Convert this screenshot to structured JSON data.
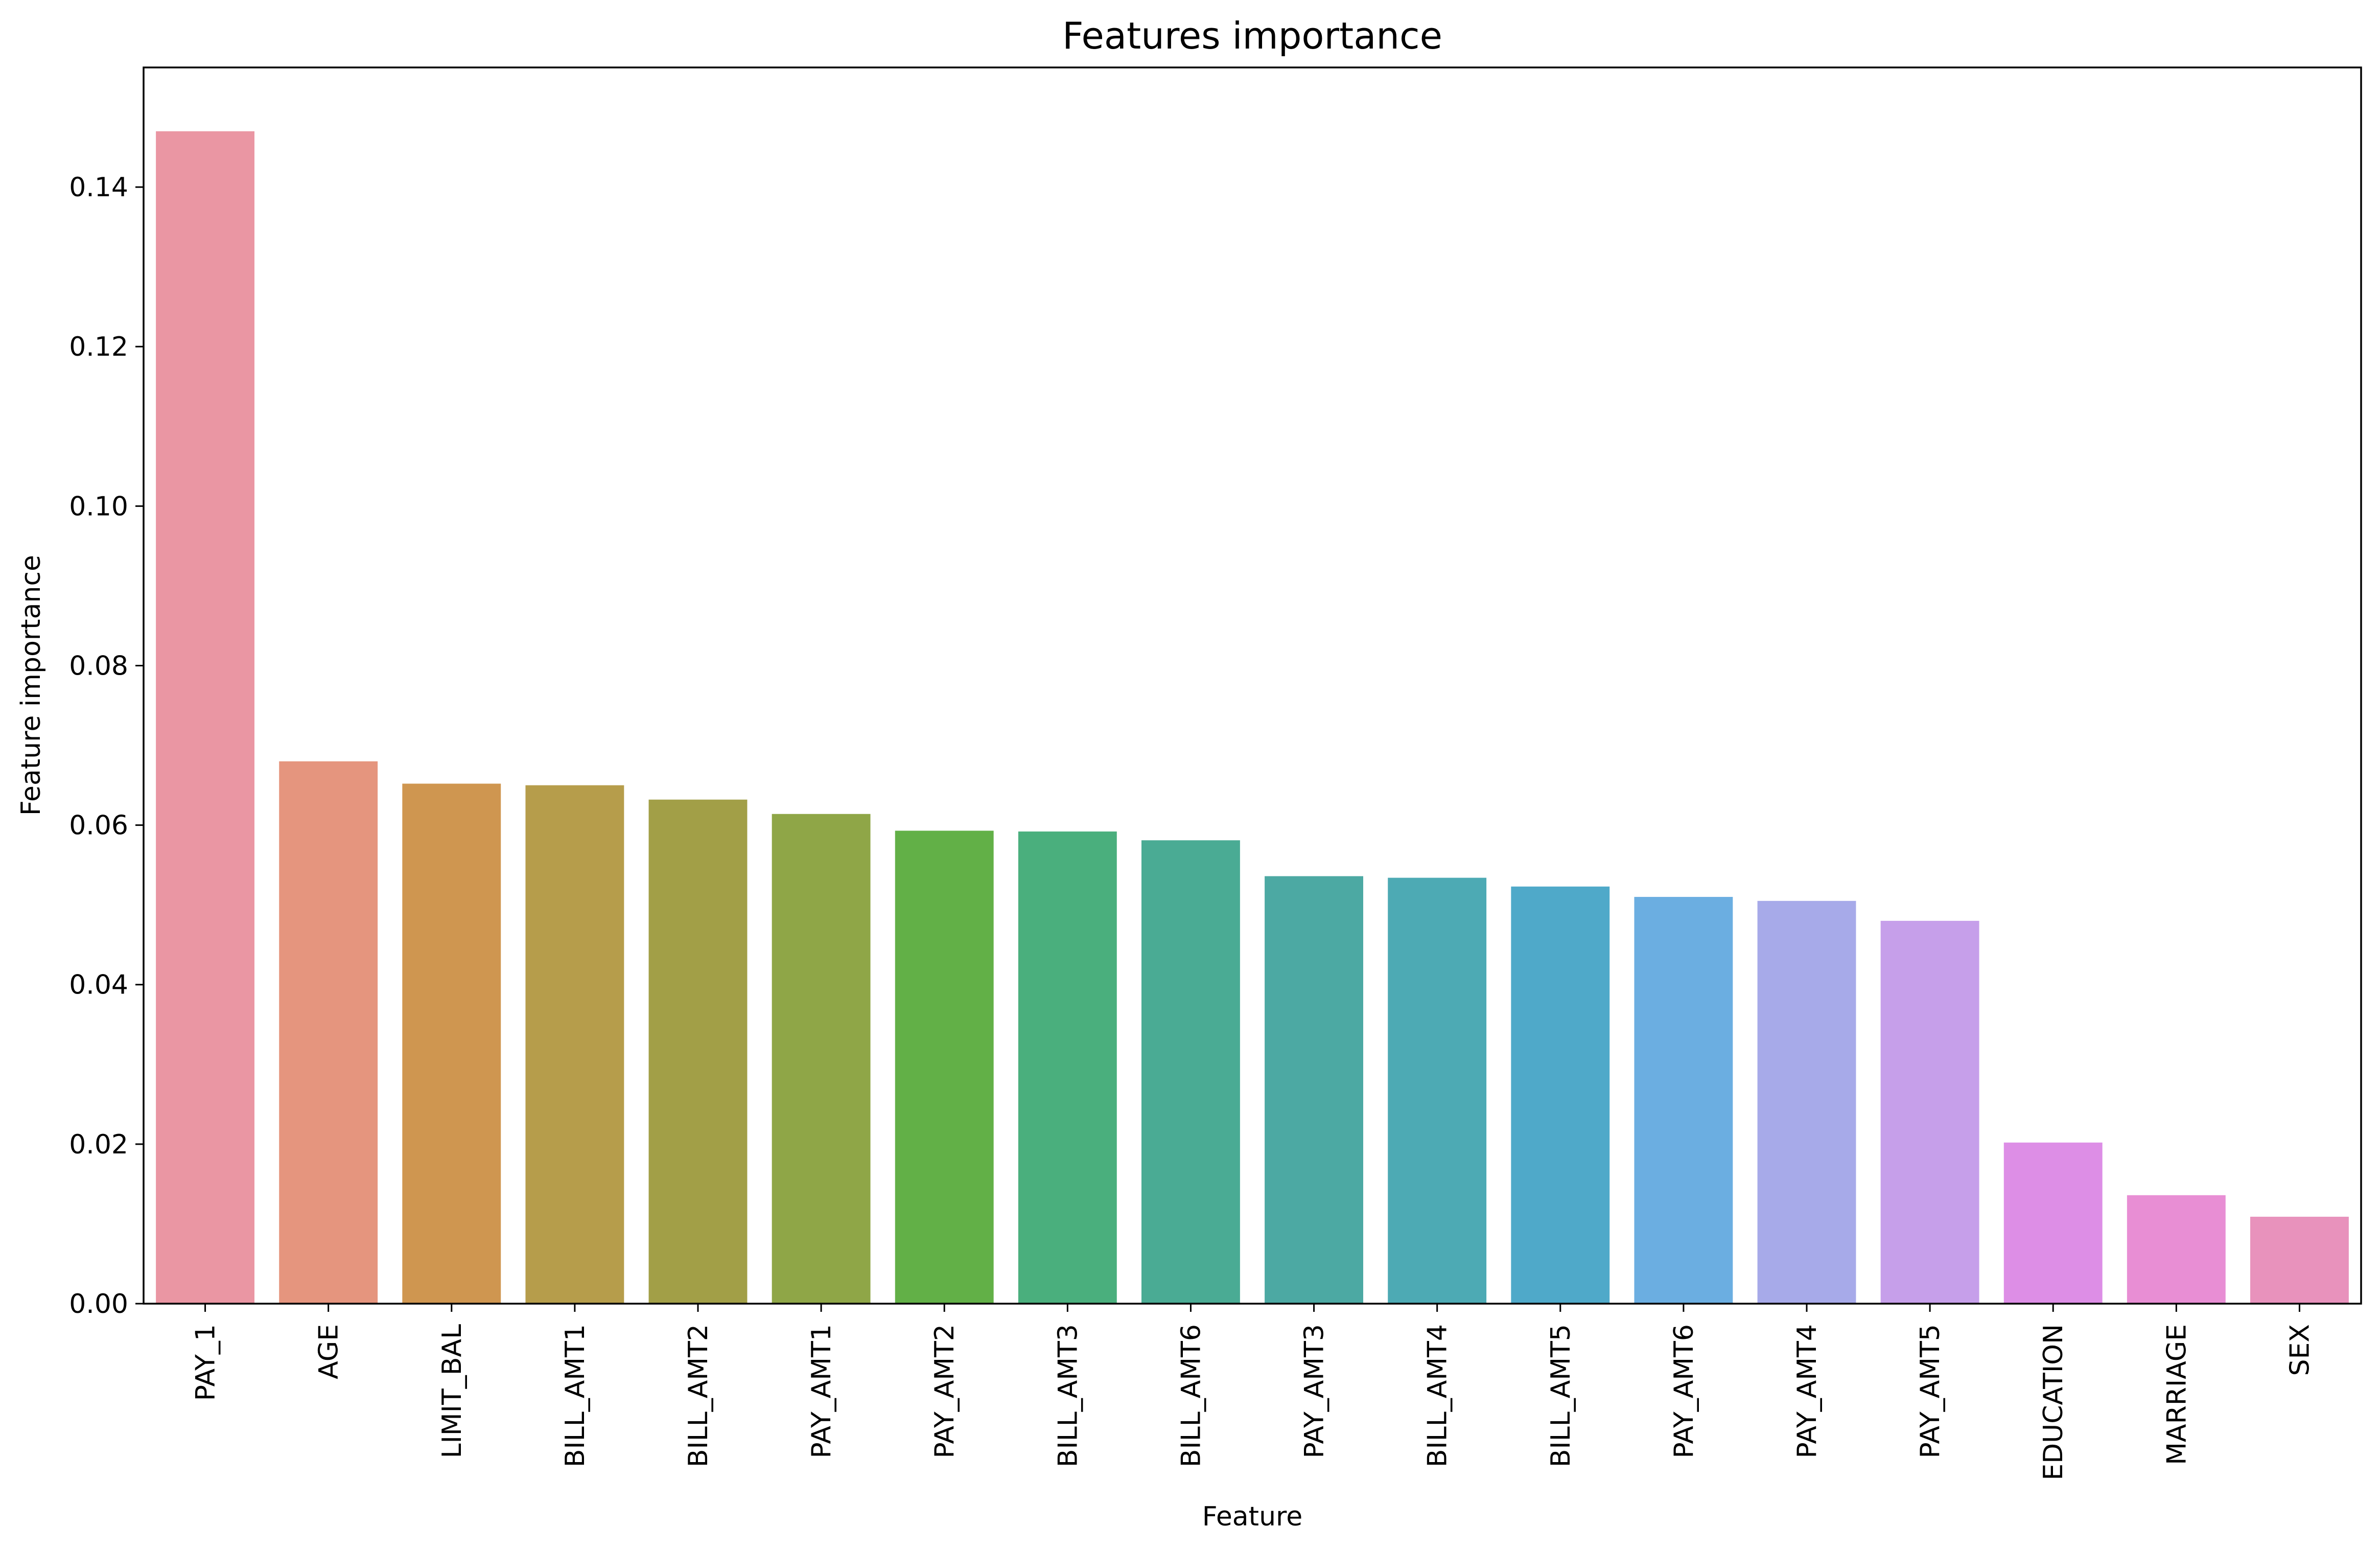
{
  "chart_data": {
    "type": "bar",
    "title": "Features importance",
    "xlabel": "Feature",
    "ylabel": "Feature importance",
    "ylim": [
      0,
      0.155
    ],
    "yticks": [
      "0.00",
      "0.02",
      "0.04",
      "0.06",
      "0.08",
      "0.10",
      "0.12",
      "0.14"
    ],
    "grid": false,
    "legend": "none",
    "categories": [
      "PAY_1",
      "AGE",
      "LIMIT_BAL",
      "BILL_AMT1",
      "BILL_AMT2",
      "PAY_AMT1",
      "PAY_AMT2",
      "BILL_AMT3",
      "BILL_AMT6",
      "PAY_AMT3",
      "BILL_AMT4",
      "BILL_AMT5",
      "PAY_AMT6",
      "PAY_AMT4",
      "PAY_AMT5",
      "EDUCATION",
      "MARRIAGE",
      "SEX"
    ],
    "values": [
      0.147,
      0.068,
      0.0652,
      0.065,
      0.0632,
      0.0614,
      0.0593,
      0.0592,
      0.0581,
      0.0536,
      0.0534,
      0.0523,
      0.051,
      0.0505,
      0.048,
      0.0202,
      0.0136,
      0.0109
    ],
    "colors": [
      "#ea96a3",
      "#e5957e",
      "#cf9650",
      "#b69d4b",
      "#a29f47",
      "#8fa647",
      "#62b047",
      "#4aaf7d",
      "#4aab94",
      "#4ca9a3",
      "#4daab4",
      "#4fa9c9",
      "#6baee1",
      "#a7aae9",
      "#c69fea",
      "#dd8ee6",
      "#e88ed4",
      "#e892bc"
    ]
  }
}
